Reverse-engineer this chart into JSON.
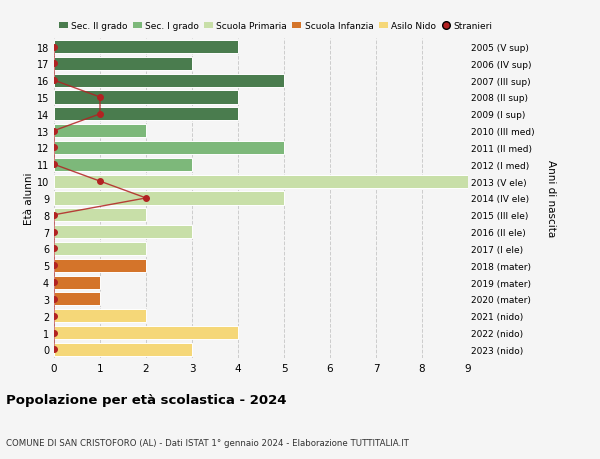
{
  "ages": [
    18,
    17,
    16,
    15,
    14,
    13,
    12,
    11,
    10,
    9,
    8,
    7,
    6,
    5,
    4,
    3,
    2,
    1,
    0
  ],
  "right_labels": [
    "2005 (V sup)",
    "2006 (IV sup)",
    "2007 (III sup)",
    "2008 (II sup)",
    "2009 (I sup)",
    "2010 (III med)",
    "2011 (II med)",
    "2012 (I med)",
    "2013 (V ele)",
    "2014 (IV ele)",
    "2015 (III ele)",
    "2016 (II ele)",
    "2017 (I ele)",
    "2018 (mater)",
    "2019 (mater)",
    "2020 (mater)",
    "2021 (nido)",
    "2022 (nido)",
    "2023 (nido)"
  ],
  "bar_values": [
    4,
    3,
    5,
    4,
    4,
    2,
    5,
    3,
    9,
    5,
    2,
    3,
    2,
    2,
    1,
    1,
    2,
    4,
    3
  ],
  "bar_colors": [
    "#4a7c4e",
    "#4a7c4e",
    "#4a7c4e",
    "#4a7c4e",
    "#4a7c4e",
    "#7db87a",
    "#7db87a",
    "#7db87a",
    "#c8dfa8",
    "#c8dfa8",
    "#c8dfa8",
    "#c8dfa8",
    "#c8dfa8",
    "#d4742a",
    "#d4742a",
    "#d4742a",
    "#f5d778",
    "#f5d778",
    "#f5d778"
  ],
  "stranieri_values": [
    0,
    0,
    0,
    1,
    1,
    0,
    0,
    0,
    1,
    2,
    0,
    0,
    0,
    0,
    0,
    0,
    0,
    0,
    0
  ],
  "legend_labels": [
    "Sec. II grado",
    "Sec. I grado",
    "Scuola Primaria",
    "Scuola Infanzia",
    "Asilo Nido",
    "Stranieri"
  ],
  "legend_colors": [
    "#4a7c4e",
    "#7db87a",
    "#c8dfa8",
    "#d4742a",
    "#f5d778",
    "#b22222"
  ],
  "title": "Popolazione per età scolastica - 2024",
  "subtitle": "COMUNE DI SAN CRISTOFORO (AL) - Dati ISTAT 1° gennaio 2024 - Elaborazione TUTTITALIA.IT",
  "ylabel_left": "Età alunni",
  "ylabel_right": "Anni di nascita",
  "xlim": [
    0,
    9
  ],
  "bg_color": "#f5f5f5",
  "grid_color": "#cccccc",
  "stranieri_color": "#b22222",
  "stranieri_line_color": "#b22222"
}
